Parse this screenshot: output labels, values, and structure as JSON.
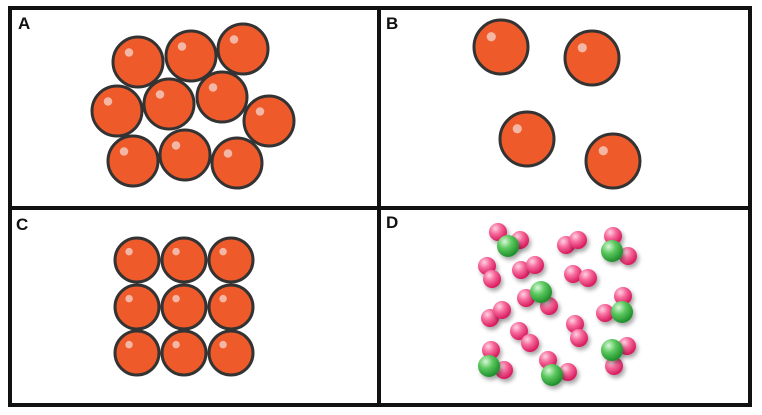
{
  "panels": [
    {
      "label": "A"
    },
    {
      "label": "B"
    },
    {
      "label": "C"
    },
    {
      "label": "D"
    }
  ],
  "colors": {
    "frame": "#111111",
    "particle_fill": "#ee5a2a",
    "particle_outline": "#333333",
    "highlight": "#f4b7a6",
    "pink_atom": "#ef3f7c",
    "green_atom": "#3cb347"
  }
}
